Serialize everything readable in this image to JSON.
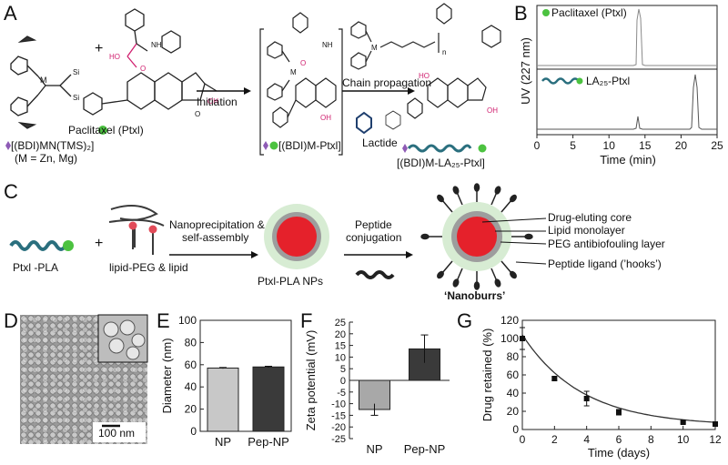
{
  "panels": {
    "a": "A",
    "b": "B",
    "c": "C",
    "d": "D",
    "e": "E",
    "f": "F",
    "g": "G"
  },
  "panelA": {
    "catalyst": "[(BDI)MN(TMS)₂]",
    "metals": "(M = Zn, Mg)",
    "ptxl": "Paclitaxel (Ptxl)",
    "initiation": "Initiation",
    "intermediate": "[(BDI)M-Ptxl]",
    "propagation": "Chain propagation",
    "lactide": "Lactide",
    "product": "[(BDI)M-LA₂₅-Ptxl]",
    "n": "n"
  },
  "panelB": {
    "ylabel": "UV (227 nm)",
    "xlabel": "Time (min)",
    "trace1": "Paclitaxel (Ptxl)",
    "trace2": "LA₂₅-Ptxl",
    "xticks": [
      "0",
      "5",
      "10",
      "15",
      "20",
      "25"
    ]
  },
  "panelC": {
    "ptxl_pla": "Ptxl -PLA",
    "lipids": "lipid-PEG & lipid",
    "step1": "Nanoprecipitation &",
    "step1b": "self-assembly",
    "nps": "Ptxl-PLA NPs",
    "step2": "Peptide",
    "step2b": "conjugation",
    "nanoburrs": "‘Nanoburrs’",
    "core": "Drug-eluting core",
    "monolayer": "Lipid monolayer",
    "peg": "PEG antibiofouling layer",
    "ligand": "Peptide ligand (’hooks’)"
  },
  "panelD": {
    "scalebar": "100 nm"
  },
  "chart_data": [
    {
      "type": "bar",
      "categories": [
        "NP",
        "Pep-NP"
      ],
      "values": [
        57,
        58
      ],
      "errors": [
        0.5,
        0.6
      ],
      "ylabel": "Diameter (nm)",
      "ylim": [
        0,
        100
      ],
      "yticks": [
        "0",
        "20",
        "40",
        "60",
        "80",
        "100"
      ],
      "colors": [
        "#c8c8c8",
        "#3a3a3a"
      ]
    },
    {
      "type": "bar",
      "categories": [
        "NP",
        "Pep-NP"
      ],
      "values": [
        -12.5,
        13.5
      ],
      "errors": [
        2.5,
        6
      ],
      "ylabel": "Zeta potential (mV)",
      "ylim": [
        -25,
        25
      ],
      "yticks": [
        "25",
        "20",
        "15",
        "10",
        "5",
        "0",
        "-5",
        "-10",
        "-15",
        "-20",
        "-25"
      ],
      "colors": [
        "#a8a8a8",
        "#3a3a3a"
      ]
    },
    {
      "type": "scatter",
      "x": [
        0,
        2,
        4,
        6,
        10,
        12
      ],
      "y": [
        100,
        56,
        34,
        19,
        8,
        6
      ],
      "errors": [
        12,
        2,
        8,
        3,
        1,
        1
      ],
      "xlabel": "Time (days)",
      "ylabel": "Drug retained (%)",
      "xlim": [
        0,
        12
      ],
      "ylim": [
        0,
        120
      ],
      "xticks": [
        "0",
        "2",
        "4",
        "6",
        "8",
        "10",
        "12"
      ],
      "yticks": [
        "0",
        "20",
        "40",
        "60",
        "80",
        "100",
        "120"
      ]
    }
  ]
}
